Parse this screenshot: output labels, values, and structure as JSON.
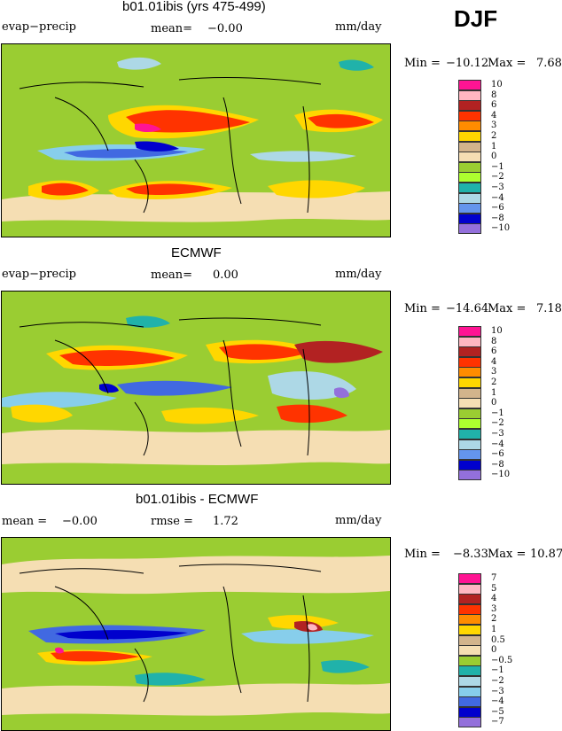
{
  "season": "DJF",
  "units": "mm/day",
  "chart_data": [
    {
      "type": "heatmap",
      "title": "b01.01ibis (yrs 475-499)",
      "variable": "evap−precip",
      "units": "mm/day",
      "mean_label": "mean=",
      "mean": "−0.00",
      "min_label": "Min =",
      "min": "−10.12",
      "max_label": "Max =",
      "max": "7.68",
      "legend": [
        "10",
        "8",
        "6",
        "4",
        "3",
        "2",
        "1",
        "0",
        "−1",
        "−2",
        "−3",
        "−4",
        "−6",
        "−8",
        "−10"
      ]
    },
    {
      "type": "heatmap",
      "title": "ECMWF",
      "variable": "evap−precip",
      "units": "mm/day",
      "mean_label": "mean=",
      "mean": "0.00",
      "min_label": "Min =",
      "min": "−14.64",
      "max_label": "Max =",
      "max": "7.18",
      "legend": [
        "10",
        "8",
        "6",
        "4",
        "3",
        "2",
        "1",
        "0",
        "−1",
        "−2",
        "−3",
        "−4",
        "−6",
        "−8",
        "−10"
      ]
    },
    {
      "type": "heatmap",
      "title": "b01.01ibis - ECMWF",
      "units": "mm/day",
      "mean_label": "mean =",
      "mean": "−0.00",
      "rmse_label": "rmse =",
      "rmse": "1.72",
      "min_label": "Min =",
      "min": "−8.33",
      "max_label": "Max =",
      "max": "10.87",
      "legend": [
        "7",
        "5",
        "4",
        "3",
        "2",
        "1",
        "0.5",
        "0",
        "−0.5",
        "−1",
        "−2",
        "−3",
        "−4",
        "−5",
        "−7"
      ]
    }
  ],
  "colors": {
    "scale": [
      "#ff1493",
      "#ffb6c1",
      "#b22222",
      "#ff3300",
      "#ff8c00",
      "#ffd700",
      "#d2b48c",
      "#f5deb3",
      "#9acd32",
      "#20b2aa",
      "#add8e6",
      "#87ceeb",
      "#4169e1",
      "#0000cd",
      "#9370db"
    ],
    "scale_main": [
      "#ff1493",
      "#ffb6c1",
      "#b22222",
      "#ff3300",
      "#ff8c00",
      "#ffd700",
      "#d2b48c",
      "#f5deb3",
      "#9acd32",
      "#adff2f",
      "#20b2aa",
      "#add8e6",
      "#6495ed",
      "#0000cd",
      "#9370db"
    ]
  }
}
